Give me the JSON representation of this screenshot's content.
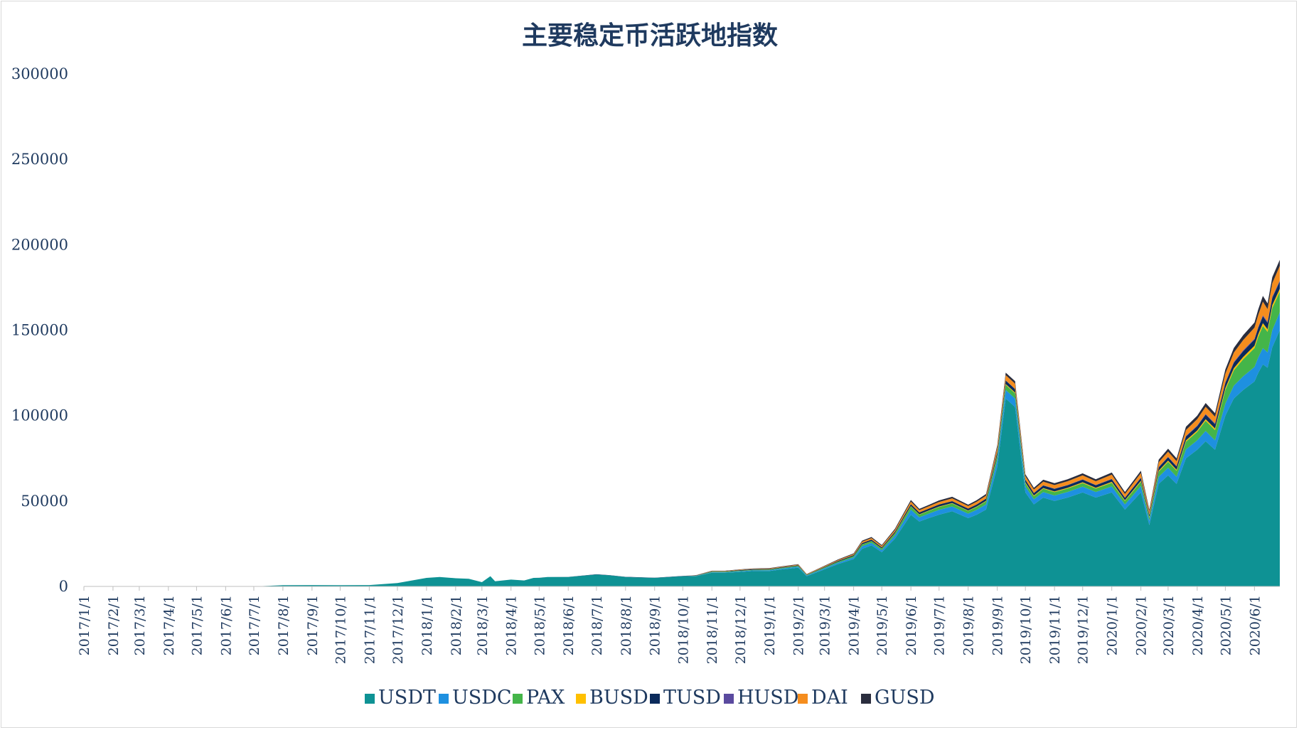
{
  "chart_data": {
    "type": "area",
    "stacked": true,
    "title": "主要稳定币活跃地指数",
    "xlabel": "",
    "ylabel": "",
    "ylim": [
      0,
      300000
    ],
    "y_ticks": [
      0,
      50000,
      100000,
      150000,
      200000,
      250000,
      300000
    ],
    "x_ticks": [
      "2017/1/1",
      "2017/2/1",
      "2017/3/1",
      "2017/4/1",
      "2017/5/1",
      "2017/6/1",
      "2017/7/1",
      "2017/8/1",
      "2017/9/1",
      "2017/10/1",
      "2017/11/1",
      "2017/12/1",
      "2018/1/1",
      "2018/2/1",
      "2018/3/1",
      "2018/4/1",
      "2018/5/1",
      "2018/6/1",
      "2018/7/1",
      "2018/8/1",
      "2018/9/1",
      "2018/10/1",
      "2018/11/1",
      "2018/12/1",
      "2019/1/1",
      "2019/2/1",
      "2019/3/1",
      "2019/4/1",
      "2019/5/1",
      "2019/6/1",
      "2019/7/1",
      "2019/8/1",
      "2019/9/1",
      "2019/10/1",
      "2019/11/1",
      "2019/12/1",
      "2020/1/1",
      "2020/2/1",
      "2020/3/1",
      "2020/4/1",
      "2020/5/1",
      "2020/6/1"
    ],
    "x_range": [
      "2017/1/1",
      "2020/6/28"
    ],
    "grid": false,
    "legend_position": "bottom",
    "x": [
      "2017/1/1",
      "2017/4/1",
      "2017/7/1",
      "2017/8/1",
      "2017/9/1",
      "2017/10/1",
      "2017/11/1",
      "2017/12/1",
      "2018/1/1",
      "2018/1/15",
      "2018/2/1",
      "2018/2/15",
      "2018/3/1",
      "2018/3/10",
      "2018/3/15",
      "2018/4/1",
      "2018/4/15",
      "2018/4/25",
      "2018/5/1",
      "2018/5/10",
      "2018/6/1",
      "2018/7/1",
      "2018/7/15",
      "2018/8/1",
      "2018/9/1",
      "2018/10/1",
      "2018/10/15",
      "2018/11/1",
      "2018/11/15",
      "2018/12/1",
      "2018/12/15",
      "2019/1/1",
      "2019/1/15",
      "2019/2/1",
      "2019/2/10",
      "2019/3/1",
      "2019/3/15",
      "2019/4/1",
      "2019/4/10",
      "2019/4/20",
      "2019/5/1",
      "2019/5/15",
      "2019/6/1",
      "2019/6/10",
      "2019/6/20",
      "2019/7/1",
      "2019/7/15",
      "2019/8/1",
      "2019/8/10",
      "2019/8/20",
      "2019/9/1",
      "2019/9/10",
      "2019/9/20",
      "2019/10/1",
      "2019/10/10",
      "2019/10/20",
      "2019/11/1",
      "2019/11/15",
      "2019/12/1",
      "2019/12/15",
      "2020/1/1",
      "2020/1/15",
      "2020/2/1",
      "2020/2/10",
      "2020/2/20",
      "2020/3/1",
      "2020/3/10",
      "2020/3/20",
      "2020/4/1",
      "2020/4/10",
      "2020/4/20",
      "2020/5/1",
      "2020/5/10",
      "2020/5/20",
      "2020/6/1",
      "2020/6/5",
      "2020/6/10",
      "2020/6/15",
      "2020/6/20",
      "2020/6/28"
    ],
    "series": [
      {
        "name": "USDT",
        "color": "#0e9294",
        "values": [
          0,
          0,
          0,
          700,
          800,
          700,
          800,
          2000,
          5000,
          5500,
          4800,
          4500,
          2500,
          6000,
          3000,
          4000,
          3500,
          5000,
          5000,
          5500,
          5500,
          7000,
          6500,
          5500,
          5000,
          6000,
          6000,
          8000,
          8000,
          8500,
          9000,
          9000,
          10000,
          11000,
          6000,
          10000,
          13000,
          16000,
          22000,
          24000,
          20000,
          28000,
          42000,
          38000,
          40000,
          42000,
          44000,
          40000,
          42000,
          45000,
          70000,
          110000,
          105000,
          55000,
          48000,
          52000,
          50000,
          52000,
          55000,
          52000,
          55000,
          45000,
          55000,
          36000,
          60000,
          65000,
          60000,
          75000,
          80000,
          85000,
          80000,
          100000,
          110000,
          115000,
          120000,
          125000,
          130000,
          128000,
          140000,
          150000
        ]
      },
      {
        "name": "USDC",
        "color": "#1e90e0",
        "values": [
          0,
          0,
          0,
          0,
          0,
          0,
          0,
          0,
          0,
          0,
          0,
          0,
          0,
          0,
          0,
          0,
          0,
          0,
          0,
          0,
          0,
          0,
          0,
          0,
          0,
          0,
          100,
          300,
          300,
          400,
          400,
          500,
          500,
          600,
          400,
          600,
          800,
          1000,
          1500,
          1500,
          1200,
          1800,
          3000,
          2500,
          2600,
          2800,
          2800,
          2600,
          2800,
          3000,
          4000,
          5000,
          5000,
          3500,
          3000,
          3200,
          3200,
          3300,
          3400,
          3300,
          3500,
          3000,
          3800,
          2500,
          4200,
          4500,
          4200,
          5200,
          5500,
          6000,
          5500,
          7000,
          7500,
          8000,
          8500,
          9000,
          9500,
          9000,
          10000,
          10500
        ]
      },
      {
        "name": "PAX",
        "color": "#44b549",
        "values": [
          0,
          0,
          0,
          0,
          0,
          0,
          0,
          0,
          0,
          0,
          0,
          0,
          0,
          0,
          0,
          0,
          0,
          0,
          0,
          0,
          0,
          0,
          0,
          0,
          0,
          0,
          150,
          300,
          300,
          350,
          350,
          400,
          400,
          450,
          300,
          500,
          600,
          800,
          1000,
          1000,
          900,
          1200,
          1800,
          1500,
          1600,
          1700,
          1700,
          1600,
          1700,
          1800,
          2500,
          3000,
          3000,
          2000,
          1800,
          2000,
          2000,
          2000,
          2100,
          2000,
          2200,
          2000,
          2500,
          1800,
          3000,
          3500,
          3500,
          4500,
          5000,
          6000,
          6000,
          8000,
          9000,
          10000,
          11000,
          12000,
          13000,
          12000,
          13000,
          12000
        ]
      },
      {
        "name": "BUSD",
        "color": "#ffc000",
        "values": [
          0,
          0,
          0,
          0,
          0,
          0,
          0,
          0,
          0,
          0,
          0,
          0,
          0,
          0,
          0,
          0,
          0,
          0,
          0,
          0,
          0,
          0,
          0,
          0,
          0,
          0,
          0,
          0,
          0,
          0,
          0,
          0,
          0,
          0,
          0,
          0,
          0,
          0,
          100,
          100,
          100,
          150,
          200,
          200,
          200,
          250,
          250,
          250,
          250,
          300,
          400,
          500,
          500,
          400,
          400,
          400,
          400,
          450,
          450,
          450,
          500,
          450,
          550,
          400,
          600,
          650,
          600,
          750,
          800,
          900,
          900,
          1100,
          1200,
          1300,
          1400,
          1500,
          1600,
          1500,
          1700,
          1700
        ]
      },
      {
        "name": "TUSD",
        "color": "#0b2a5b",
        "values": [
          0,
          0,
          0,
          0,
          0,
          0,
          0,
          0,
          0,
          0,
          0,
          0,
          0,
          0,
          0,
          0,
          0,
          0,
          50,
          50,
          80,
          100,
          100,
          100,
          120,
          150,
          200,
          250,
          250,
          300,
          300,
          300,
          350,
          350,
          200,
          350,
          450,
          550,
          800,
          800,
          700,
          900,
          1200,
          1100,
          1100,
          1200,
          1200,
          1100,
          1200,
          1300,
          1800,
          2000,
          2000,
          1500,
          1400,
          1500,
          1500,
          1500,
          1600,
          1500,
          1600,
          1400,
          1700,
          1200,
          1900,
          2000,
          1900,
          2300,
          2500,
          2700,
          2600,
          3000,
          3200,
          3400,
          3600,
          3800,
          4000,
          3800,
          4200,
          4300
        ]
      },
      {
        "name": "HUSD",
        "color": "#5a4a9f",
        "values": [
          0,
          0,
          0,
          0,
          0,
          0,
          0,
          0,
          0,
          0,
          0,
          0,
          0,
          0,
          0,
          0,
          0,
          0,
          0,
          0,
          0,
          0,
          0,
          0,
          0,
          0,
          0,
          0,
          0,
          0,
          0,
          0,
          0,
          0,
          0,
          0,
          0,
          0,
          0,
          0,
          0,
          0,
          0,
          0,
          0,
          0,
          0,
          0,
          0,
          0,
          100,
          150,
          150,
          150,
          150,
          150,
          150,
          150,
          150,
          150,
          200,
          150,
          200,
          150,
          250,
          250,
          250,
          300,
          300,
          350,
          350,
          400,
          450,
          500,
          500,
          550,
          600,
          550,
          600,
          600
        ]
      },
      {
        "name": "DAI",
        "color": "#f58d1e",
        "values": [
          0,
          0,
          0,
          0,
          0,
          0,
          0,
          0,
          0,
          0,
          0,
          0,
          0,
          0,
          0,
          0,
          0,
          0,
          0,
          0,
          0,
          0,
          0,
          0,
          0,
          0,
          100,
          200,
          200,
          250,
          250,
          300,
          300,
          350,
          250,
          400,
          500,
          600,
          800,
          900,
          800,
          1000,
          1500,
          1300,
          1400,
          1500,
          1600,
          1500,
          1600,
          1700,
          2500,
          3000,
          3000,
          2000,
          2000,
          2100,
          2100,
          2200,
          2300,
          2200,
          2400,
          2100,
          2600,
          1900,
          2800,
          3000,
          2900,
          3500,
          3800,
          4200,
          4000,
          5000,
          5500,
          6000,
          6500,
          7000,
          8000,
          7500,
          8000,
          8500
        ]
      },
      {
        "name": "GUSD",
        "color": "#2a2d3e",
        "values": [
          0,
          0,
          0,
          0,
          0,
          0,
          0,
          0,
          0,
          0,
          0,
          0,
          0,
          0,
          0,
          0,
          0,
          0,
          0,
          0,
          0,
          0,
          0,
          0,
          0,
          0,
          80,
          150,
          150,
          200,
          200,
          200,
          250,
          250,
          150,
          250,
          350,
          400,
          600,
          600,
          500,
          700,
          900,
          800,
          800,
          900,
          900,
          800,
          900,
          1000,
          1300,
          1500,
          1500,
          1100,
          1000,
          1100,
          1100,
          1100,
          1200,
          1100,
          1300,
          1100,
          1400,
          1000,
          1500,
          1700,
          1600,
          1900,
          2000,
          2200,
          2100,
          2500,
          2700,
          2900,
          3000,
          3200,
          3400,
          3300,
          3500,
          3600
        ]
      }
    ]
  }
}
